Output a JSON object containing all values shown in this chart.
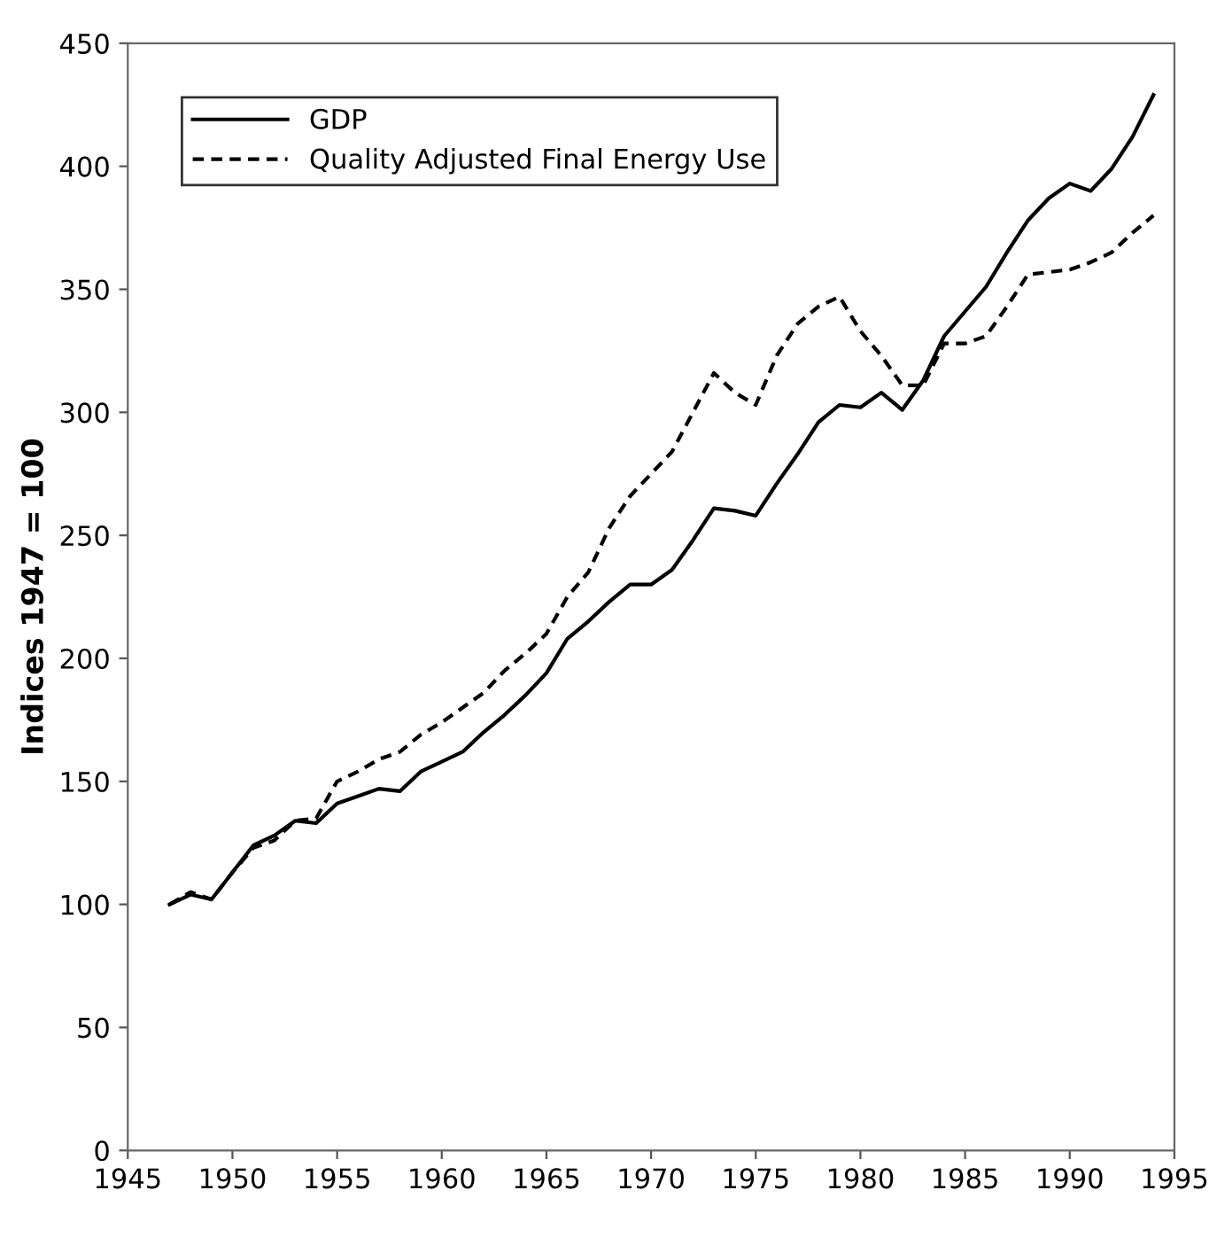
{
  "chart_data": {
    "type": "line",
    "ylabel": "Indices 1947 = 100",
    "x": [
      1947,
      1948,
      1949,
      1950,
      1951,
      1952,
      1953,
      1954,
      1955,
      1956,
      1957,
      1958,
      1959,
      1960,
      1961,
      1962,
      1963,
      1964,
      1965,
      1966,
      1967,
      1968,
      1969,
      1970,
      1971,
      1972,
      1973,
      1974,
      1975,
      1976,
      1977,
      1978,
      1979,
      1980,
      1981,
      1982,
      1983,
      1984,
      1985,
      1986,
      1987,
      1988,
      1989,
      1990,
      1991,
      1992,
      1993,
      1994
    ],
    "series": [
      {
        "name": "GDP",
        "color": "#000000",
        "line_style": "solid",
        "values": [
          100,
          104,
          102,
          113,
          124,
          128,
          134,
          133,
          141,
          144,
          147,
          146,
          154,
          158,
          162,
          170,
          177,
          185,
          194,
          208,
          215,
          223,
          230,
          230,
          236,
          248,
          261,
          260,
          258,
          271,
          283,
          296,
          303,
          302,
          308,
          301,
          313,
          331,
          341,
          351,
          365,
          378,
          387,
          393,
          390,
          399,
          412,
          429
        ]
      },
      {
        "name": "Quality Adjusted Final Energy Use",
        "color": "#000000",
        "line_style": "dashed",
        "values": [
          100,
          105,
          102,
          113,
          123,
          126,
          134,
          135,
          150,
          154,
          159,
          162,
          169,
          174,
          180,
          186,
          195,
          202,
          210,
          225,
          235,
          253,
          266,
          275,
          284,
          300,
          316,
          308,
          303,
          323,
          336,
          343,
          347,
          333,
          323,
          311,
          311,
          328,
          328,
          331,
          343,
          356,
          357,
          358,
          361,
          365,
          373,
          380
        ]
      }
    ],
    "xlim": [
      1945,
      1995
    ],
    "xticks": [
      1945,
      1950,
      1955,
      1960,
      1965,
      1970,
      1975,
      1980,
      1985,
      1990,
      1995
    ],
    "ylim": [
      0,
      450
    ],
    "yticks": [
      0,
      50,
      100,
      150,
      200,
      250,
      300,
      350,
      400,
      450
    ],
    "grid": false,
    "legend": "top left",
    "marker": "none"
  }
}
